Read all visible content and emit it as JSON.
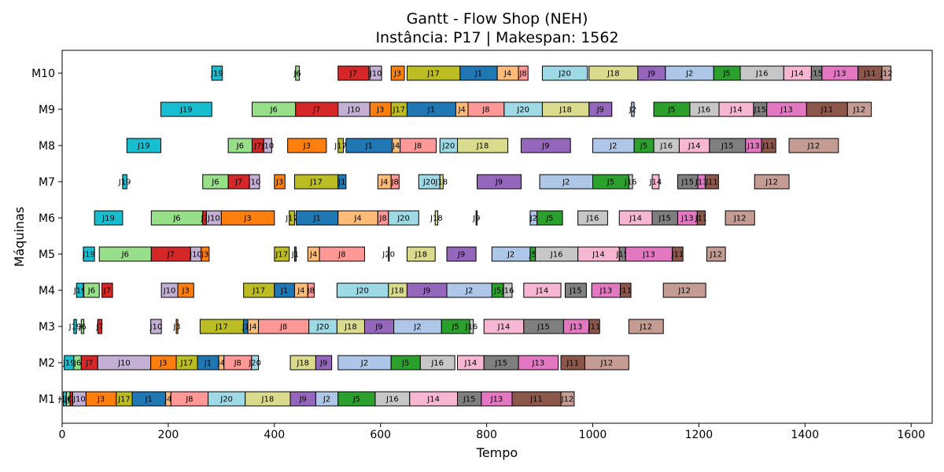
{
  "chart_data": {
    "type": "gantt",
    "title": "Gantt - Flow Shop (NEH)",
    "subtitle": "Instância: P17 | Makespan: 1562",
    "xlabel": "Tempo",
    "ylabel": "Máquinas",
    "xlim": [
      0,
      1640
    ],
    "xticks": [
      0,
      200,
      400,
      600,
      800,
      1000,
      1200,
      1400,
      1600
    ],
    "machines": [
      "M1",
      "M2",
      "M3",
      "M4",
      "M5",
      "M6",
      "M7",
      "M8",
      "M9",
      "M10"
    ],
    "job_colors": {
      "J1": "#1f77b4",
      "J2": "#aec7e8",
      "J3": "#ff7f0e",
      "J4": "#ffbb78",
      "J5": "#2ca02c",
      "J6": "#98df8a",
      "J7": "#d62728",
      "J8": "#ff9896",
      "J9": "#9467bd",
      "J10": "#c5b0d5",
      "J11": "#8c564b",
      "J12": "#c49c94",
      "J13": "#e377c2",
      "J14": "#f7b6d2",
      "J15": "#7f7f7f",
      "J16": "#c7c7c7",
      "J17": "#bcbd22",
      "J18": "#dbdb8d",
      "J19": "#17becf",
      "J20": "#9edae5"
    },
    "tasks": {
      "M1": [
        {
          "job": "J19",
          "start": 2,
          "end": 8
        },
        {
          "job": "J6",
          "start": 8,
          "end": 15
        },
        {
          "job": "J7",
          "start": 15,
          "end": 20
        },
        {
          "job": "J10",
          "start": 20,
          "end": 45
        },
        {
          "job": "J3",
          "start": 45,
          "end": 102
        },
        {
          "job": "J17",
          "start": 102,
          "end": 132
        },
        {
          "job": "J1",
          "start": 132,
          "end": 195
        },
        {
          "job": "J4",
          "start": 195,
          "end": 205
        },
        {
          "job": "J8",
          "start": 205,
          "end": 275
        },
        {
          "job": "J20",
          "start": 275,
          "end": 345
        },
        {
          "job": "J18",
          "start": 345,
          "end": 430
        },
        {
          "job": "J9",
          "start": 430,
          "end": 478
        },
        {
          "job": "J2",
          "start": 478,
          "end": 520
        },
        {
          "job": "J5",
          "start": 520,
          "end": 590
        },
        {
          "job": "J16",
          "start": 590,
          "end": 655
        },
        {
          "job": "J14",
          "start": 655,
          "end": 745
        },
        {
          "job": "J15",
          "start": 745,
          "end": 790
        },
        {
          "job": "J13",
          "start": 790,
          "end": 848
        },
        {
          "job": "J11",
          "start": 848,
          "end": 940
        },
        {
          "job": "J12",
          "start": 940,
          "end": 965
        }
      ],
      "M2": [
        {
          "job": "J19",
          "start": 4,
          "end": 22
        },
        {
          "job": "J6",
          "start": 22,
          "end": 36
        },
        {
          "job": "J7",
          "start": 36,
          "end": 67
        },
        {
          "job": "J10",
          "start": 67,
          "end": 167
        },
        {
          "job": "J3",
          "start": 167,
          "end": 215
        },
        {
          "job": "J17",
          "start": 215,
          "end": 255
        },
        {
          "job": "J1",
          "start": 255,
          "end": 295
        },
        {
          "job": "J4",
          "start": 295,
          "end": 305
        },
        {
          "job": "J8",
          "start": 305,
          "end": 357
        },
        {
          "job": "J20",
          "start": 357,
          "end": 370
        },
        {
          "job": "J18",
          "start": 430,
          "end": 478
        },
        {
          "job": "J9",
          "start": 478,
          "end": 508
        },
        {
          "job": "J2",
          "start": 520,
          "end": 620
        },
        {
          "job": "J5",
          "start": 620,
          "end": 675
        },
        {
          "job": "J16",
          "start": 675,
          "end": 740
        },
        {
          "job": "J14",
          "start": 745,
          "end": 795
        },
        {
          "job": "J15",
          "start": 795,
          "end": 860
        },
        {
          "job": "J13",
          "start": 860,
          "end": 935
        },
        {
          "job": "J11",
          "start": 940,
          "end": 985
        },
        {
          "job": "J12",
          "start": 985,
          "end": 1068
        }
      ],
      "M3": [
        {
          "job": "J19",
          "start": 22,
          "end": 27
        },
        {
          "job": "J6",
          "start": 36,
          "end": 41
        },
        {
          "job": "J7",
          "start": 67,
          "end": 75
        },
        {
          "job": "J10",
          "start": 167,
          "end": 187
        },
        {
          "job": "J3",
          "start": 215,
          "end": 218
        },
        {
          "job": "J17",
          "start": 260,
          "end": 342
        },
        {
          "job": "J1",
          "start": 342,
          "end": 350
        },
        {
          "job": "J4",
          "start": 350,
          "end": 370
        },
        {
          "job": "J8",
          "start": 370,
          "end": 465
        },
        {
          "job": "J20",
          "start": 465,
          "end": 518
        },
        {
          "job": "J18",
          "start": 518,
          "end": 570
        },
        {
          "job": "J9",
          "start": 570,
          "end": 625
        },
        {
          "job": "J2",
          "start": 625,
          "end": 715
        },
        {
          "job": "J5",
          "start": 715,
          "end": 768
        },
        {
          "job": "J16",
          "start": 768,
          "end": 775
        },
        {
          "job": "J14",
          "start": 795,
          "end": 870
        },
        {
          "job": "J15",
          "start": 870,
          "end": 945
        },
        {
          "job": "J13",
          "start": 945,
          "end": 993
        },
        {
          "job": "J11",
          "start": 993,
          "end": 1013
        },
        {
          "job": "J12",
          "start": 1068,
          "end": 1133
        }
      ],
      "M4": [
        {
          "job": "J19",
          "start": 27,
          "end": 40
        },
        {
          "job": "J6",
          "start": 41,
          "end": 70
        },
        {
          "job": "J7",
          "start": 75,
          "end": 95
        },
        {
          "job": "J10",
          "start": 187,
          "end": 218
        },
        {
          "job": "J3",
          "start": 218,
          "end": 248
        },
        {
          "job": "J17",
          "start": 342,
          "end": 400
        },
        {
          "job": "J1",
          "start": 400,
          "end": 438
        },
        {
          "job": "J4",
          "start": 438,
          "end": 463
        },
        {
          "job": "J8",
          "start": 463,
          "end": 475
        },
        {
          "job": "J20",
          "start": 518,
          "end": 615
        },
        {
          "job": "J18",
          "start": 615,
          "end": 650
        },
        {
          "job": "J9",
          "start": 650,
          "end": 725
        },
        {
          "job": "J2",
          "start": 725,
          "end": 810
        },
        {
          "job": "J5",
          "start": 810,
          "end": 832
        },
        {
          "job": "J16",
          "start": 832,
          "end": 848
        },
        {
          "job": "J14",
          "start": 870,
          "end": 940
        },
        {
          "job": "J15",
          "start": 948,
          "end": 988
        },
        {
          "job": "J13",
          "start": 998,
          "end": 1052
        },
        {
          "job": "J11",
          "start": 1052,
          "end": 1072
        },
        {
          "job": "J12",
          "start": 1133,
          "end": 1213
        }
      ],
      "M5": [
        {
          "job": "J19",
          "start": 40,
          "end": 61
        },
        {
          "job": "J6",
          "start": 70,
          "end": 168
        },
        {
          "job": "J7",
          "start": 168,
          "end": 242
        },
        {
          "job": "J10",
          "start": 242,
          "end": 262
        },
        {
          "job": "J3",
          "start": 262,
          "end": 277
        },
        {
          "job": "J17",
          "start": 400,
          "end": 428
        },
        {
          "job": "J1",
          "start": 438,
          "end": 441
        },
        {
          "job": "J4",
          "start": 463,
          "end": 485
        },
        {
          "job": "J8",
          "start": 485,
          "end": 570
        },
        {
          "job": "J20",
          "start": 615,
          "end": 616
        },
        {
          "job": "J18",
          "start": 650,
          "end": 703
        },
        {
          "job": "J9",
          "start": 725,
          "end": 780
        },
        {
          "job": "J2",
          "start": 810,
          "end": 882
        },
        {
          "job": "J5",
          "start": 882,
          "end": 892
        },
        {
          "job": "J16",
          "start": 892,
          "end": 972
        },
        {
          "job": "J14",
          "start": 972,
          "end": 1050
        },
        {
          "job": "J15",
          "start": 1050,
          "end": 1062
        },
        {
          "job": "J13",
          "start": 1062,
          "end": 1150
        },
        {
          "job": "J11",
          "start": 1150,
          "end": 1170
        },
        {
          "job": "J12",
          "start": 1215,
          "end": 1250
        }
      ],
      "M6": [
        {
          "job": "J19",
          "start": 61,
          "end": 114
        },
        {
          "job": "J6",
          "start": 168,
          "end": 265
        },
        {
          "job": "J7",
          "start": 265,
          "end": 272
        },
        {
          "job": "J10",
          "start": 272,
          "end": 300
        },
        {
          "job": "J3",
          "start": 300,
          "end": 400
        },
        {
          "job": "J17",
          "start": 428,
          "end": 438
        },
        {
          "job": "J1",
          "start": 441,
          "end": 520
        },
        {
          "job": "J4",
          "start": 520,
          "end": 595
        },
        {
          "job": "J8",
          "start": 595,
          "end": 615
        },
        {
          "job": "J20",
          "start": 615,
          "end": 672
        },
        {
          "job": "J18",
          "start": 703,
          "end": 708
        },
        {
          "job": "J9",
          "start": 780,
          "end": 782
        },
        {
          "job": "J2",
          "start": 882,
          "end": 895
        },
        {
          "job": "J5",
          "start": 895,
          "end": 943
        },
        {
          "job": "J16",
          "start": 972,
          "end": 1028
        },
        {
          "job": "J14",
          "start": 1050,
          "end": 1112
        },
        {
          "job": "J15",
          "start": 1112,
          "end": 1160
        },
        {
          "job": "J13",
          "start": 1160,
          "end": 1197
        },
        {
          "job": "J11",
          "start": 1197,
          "end": 1212
        },
        {
          "job": "J12",
          "start": 1250,
          "end": 1305
        }
      ],
      "M7": [
        {
          "job": "J19",
          "start": 114,
          "end": 122
        },
        {
          "job": "J6",
          "start": 265,
          "end": 313
        },
        {
          "job": "J7",
          "start": 313,
          "end": 353
        },
        {
          "job": "J10",
          "start": 353,
          "end": 372
        },
        {
          "job": "J3",
          "start": 400,
          "end": 420
        },
        {
          "job": "J17",
          "start": 438,
          "end": 520
        },
        {
          "job": "J1",
          "start": 520,
          "end": 535
        },
        {
          "job": "J4",
          "start": 595,
          "end": 620
        },
        {
          "job": "J8",
          "start": 620,
          "end": 635
        },
        {
          "job": "J20",
          "start": 672,
          "end": 712
        },
        {
          "job": "J18",
          "start": 712,
          "end": 718
        },
        {
          "job": "J9",
          "start": 782,
          "end": 865
        },
        {
          "job": "J2",
          "start": 900,
          "end": 1000
        },
        {
          "job": "J5",
          "start": 1000,
          "end": 1068
        },
        {
          "job": "J16",
          "start": 1068,
          "end": 1075
        },
        {
          "job": "J14",
          "start": 1112,
          "end": 1125
        },
        {
          "job": "J15",
          "start": 1160,
          "end": 1198
        },
        {
          "job": "J13",
          "start": 1198,
          "end": 1212
        },
        {
          "job": "J11",
          "start": 1212,
          "end": 1237
        },
        {
          "job": "J12",
          "start": 1305,
          "end": 1370
        }
      ],
      "M8": [
        {
          "job": "J19",
          "start": 122,
          "end": 186
        },
        {
          "job": "J6",
          "start": 313,
          "end": 358
        },
        {
          "job": "J7",
          "start": 358,
          "end": 380
        },
        {
          "job": "J10",
          "start": 380,
          "end": 395
        },
        {
          "job": "J3",
          "start": 425,
          "end": 498
        },
        {
          "job": "J17",
          "start": 520,
          "end": 530
        },
        {
          "job": "J1",
          "start": 535,
          "end": 622
        },
        {
          "job": "J4",
          "start": 622,
          "end": 637
        },
        {
          "job": "J8",
          "start": 637,
          "end": 705
        },
        {
          "job": "J20",
          "start": 712,
          "end": 745
        },
        {
          "job": "J18",
          "start": 745,
          "end": 840
        },
        {
          "job": "J9",
          "start": 865,
          "end": 958
        },
        {
          "job": "J2",
          "start": 1000,
          "end": 1078
        },
        {
          "job": "J5",
          "start": 1078,
          "end": 1115
        },
        {
          "job": "J16",
          "start": 1115,
          "end": 1163
        },
        {
          "job": "J14",
          "start": 1163,
          "end": 1220
        },
        {
          "job": "J15",
          "start": 1220,
          "end": 1288
        },
        {
          "job": "J13",
          "start": 1288,
          "end": 1318
        },
        {
          "job": "J11",
          "start": 1318,
          "end": 1345
        },
        {
          "job": "J12",
          "start": 1370,
          "end": 1463
        }
      ],
      "M9": [
        {
          "job": "J19",
          "start": 186,
          "end": 282
        },
        {
          "job": "J6",
          "start": 358,
          "end": 440
        },
        {
          "job": "J7",
          "start": 440,
          "end": 520
        },
        {
          "job": "J10",
          "start": 520,
          "end": 580
        },
        {
          "job": "J3",
          "start": 580,
          "end": 620
        },
        {
          "job": "J17",
          "start": 620,
          "end": 650
        },
        {
          "job": "J1",
          "start": 650,
          "end": 742
        },
        {
          "job": "J4",
          "start": 742,
          "end": 765
        },
        {
          "job": "J8",
          "start": 765,
          "end": 833
        },
        {
          "job": "J20",
          "start": 833,
          "end": 905
        },
        {
          "job": "J18",
          "start": 905,
          "end": 993
        },
        {
          "job": "J9",
          "start": 993,
          "end": 1036
        },
        {
          "job": "J2",
          "start": 1073,
          "end": 1078
        },
        {
          "job": "J5",
          "start": 1115,
          "end": 1183
        },
        {
          "job": "J16",
          "start": 1183,
          "end": 1238
        },
        {
          "job": "J14",
          "start": 1238,
          "end": 1303
        },
        {
          "job": "J15",
          "start": 1303,
          "end": 1328
        },
        {
          "job": "J13",
          "start": 1328,
          "end": 1403
        },
        {
          "job": "J11",
          "start": 1403,
          "end": 1480
        },
        {
          "job": "J12",
          "start": 1480,
          "end": 1525
        }
      ],
      "M10": [
        {
          "job": "J19",
          "start": 282,
          "end": 302
        },
        {
          "job": "J6",
          "start": 440,
          "end": 447
        },
        {
          "job": "J7",
          "start": 520,
          "end": 578
        },
        {
          "job": "J10",
          "start": 580,
          "end": 602
        },
        {
          "job": "J3",
          "start": 620,
          "end": 645
        },
        {
          "job": "J17",
          "start": 650,
          "end": 750
        },
        {
          "job": "J1",
          "start": 750,
          "end": 820
        },
        {
          "job": "J4",
          "start": 820,
          "end": 860
        },
        {
          "job": "J8",
          "start": 860,
          "end": 878
        },
        {
          "job": "J20",
          "start": 905,
          "end": 990
        },
        {
          "job": "J18",
          "start": 993,
          "end": 1085
        },
        {
          "job": "J9",
          "start": 1085,
          "end": 1137
        },
        {
          "job": "J2",
          "start": 1137,
          "end": 1228
        },
        {
          "job": "J5",
          "start": 1228,
          "end": 1278
        },
        {
          "job": "J16",
          "start": 1278,
          "end": 1360
        },
        {
          "job": "J14",
          "start": 1360,
          "end": 1412
        },
        {
          "job": "J15",
          "start": 1412,
          "end": 1432
        },
        {
          "job": "J13",
          "start": 1432,
          "end": 1500
        },
        {
          "job": "J11",
          "start": 1500,
          "end": 1545
        },
        {
          "job": "J12",
          "start": 1545,
          "end": 1562
        }
      ]
    }
  }
}
